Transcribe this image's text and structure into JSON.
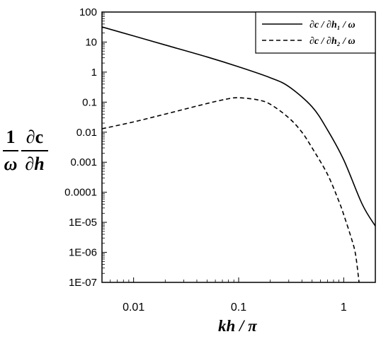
{
  "chart_data": {
    "type": "line",
    "xscale": "log",
    "yscale": "log",
    "xlim": [
      0.005,
      2
    ],
    "ylim": [
      1e-07,
      100
    ],
    "xticks": [
      "0.01",
      "0.1",
      "1"
    ],
    "yticks": [
      "100",
      "10",
      "1",
      "0.1",
      "0.01",
      "0.001",
      "0.0001",
      "1E-05",
      "1E-06",
      "1E-07"
    ],
    "xlabel": "kh / π",
    "ylabel": {
      "numerator_left": "1",
      "denominator_left": "ω",
      "numerator_right": "∂c",
      "denominator_right": "∂h"
    },
    "grid": false,
    "legend_position": "top-right",
    "series": [
      {
        "name": "∂c / ∂h₁ / ω",
        "style": "solid",
        "x": [
          0.005,
          0.01,
          0.02,
          0.05,
          0.1,
          0.2,
          0.3,
          0.5,
          0.7,
          1.0,
          1.5,
          2.0
        ],
        "y": [
          32,
          16,
          8,
          3.2,
          1.5,
          0.65,
          0.33,
          0.07,
          0.012,
          0.0012,
          4e-05,
          7.5e-06
        ]
      },
      {
        "name": "∂c / ∂h₂ / ω",
        "style": "dashed",
        "x": [
          0.005,
          0.01,
          0.02,
          0.05,
          0.08,
          0.1,
          0.15,
          0.2,
          0.3,
          0.4,
          0.5,
          0.7,
          0.9,
          1.0,
          1.2,
          1.3,
          1.4
        ],
        "y": [
          0.013,
          0.022,
          0.04,
          0.09,
          0.13,
          0.14,
          0.12,
          0.085,
          0.03,
          0.01,
          0.003,
          0.0004,
          5e-05,
          1.8e-05,
          2.5e-06,
          8e-07,
          1e-07
        ]
      }
    ]
  }
}
